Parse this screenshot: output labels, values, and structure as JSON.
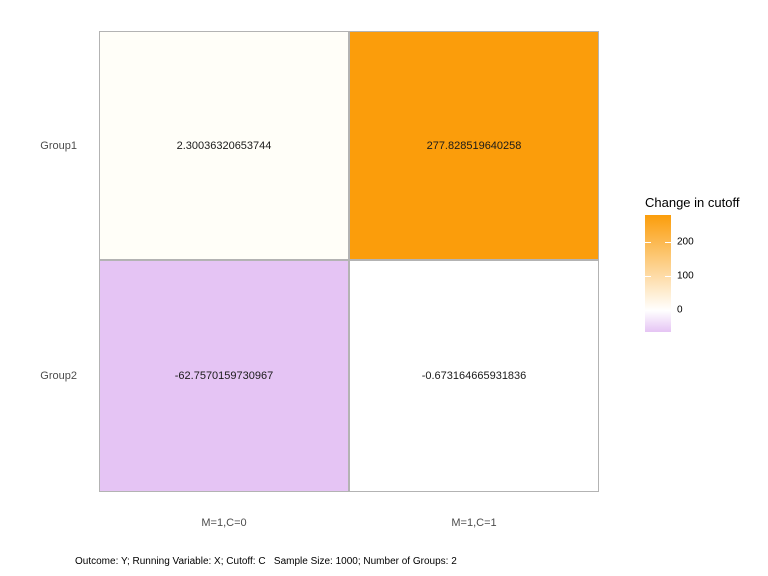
{
  "chart_data": {
    "type": "heatmap",
    "x_categories": [
      "M=1,C=0",
      "M=1,C=1"
    ],
    "y_categories": [
      "Group1",
      "Group2"
    ],
    "values": [
      [
        2.30036320653744,
        277.828519640258
      ],
      [
        -62.7570159730967,
        -0.673164665931836
      ]
    ],
    "cell_labels": [
      [
        "2.30036320653744",
        "277.828519640258"
      ],
      [
        "-62.7570159730967",
        "-0.673164665931836"
      ]
    ],
    "cell_colors": [
      [
        "#FFFEF8",
        "#FB9D0B"
      ],
      [
        "#E5C4F4",
        "#FFFFFF"
      ]
    ],
    "tile_border_color": "#B3B3B3",
    "axis_text_color": "#4D4D4D",
    "legend": {
      "title": "Change in cutoff",
      "position": "right",
      "range": [
        -62.7570159730967,
        277.828519640258
      ],
      "midpoint": 0,
      "ticks": [
        "200",
        "100",
        "0"
      ],
      "color_high": "#FB9D0B",
      "color_mid": "#FFFFFF",
      "color_low": "#E5C4F4"
    },
    "caption": "Outcome: Y; Running Variable: X; Cutoff: C   Sample Size: 1000; Number of Groups: 2",
    "grid": false,
    "background": "#FFFFFF"
  }
}
